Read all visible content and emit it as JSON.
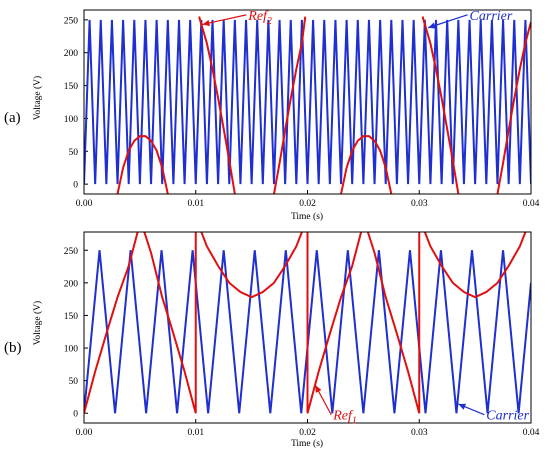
{
  "chart_data": [
    {
      "type": "line",
      "panel_label": "(a)",
      "xlabel": "Time (s)",
      "ylabel": "Voltage (V)",
      "xlim": [
        0,
        0.04
      ],
      "ylim": [
        -15,
        265
      ],
      "x_ticks": [
        "0.00",
        "0.01",
        "0.02",
        "0.03",
        "0.04"
      ],
      "y_ticks": [
        "0",
        "50",
        "100",
        "150",
        "200",
        "250"
      ],
      "grid": false,
      "colors": {
        "carrier": "#1f2fd0",
        "reference": "#e01010"
      },
      "series": [
        {
          "name": "Carrier",
          "kind": "triangular",
          "min": 0,
          "max": 250,
          "frequency_hz": 1000,
          "points": [
            [
              0,
              0
            ],
            [
              0.0005,
              250
            ],
            [
              0.001,
              0
            ],
            [
              0.0015,
              250
            ],
            [
              0.002,
              0
            ],
            [
              0.0025,
              250
            ],
            [
              0.003,
              0
            ],
            [
              0.0035,
              250
            ],
            [
              0.004,
              0
            ],
            [
              0.0045,
              250
            ],
            [
              0.005,
              0
            ],
            [
              0.0055,
              250
            ],
            [
              0.006,
              0
            ],
            [
              0.0065,
              250
            ],
            [
              0.007,
              0
            ],
            [
              0.0075,
              250
            ],
            [
              0.008,
              0
            ],
            [
              0.0085,
              250
            ],
            [
              0.009,
              0
            ],
            [
              0.0095,
              250
            ],
            [
              0.01,
              0
            ],
            [
              0.0105,
              250
            ],
            [
              0.011,
              0
            ],
            [
              0.0115,
              250
            ],
            [
              0.012,
              0
            ],
            [
              0.0125,
              250
            ],
            [
              0.013,
              0
            ],
            [
              0.0135,
              250
            ],
            [
              0.014,
              0
            ],
            [
              0.0145,
              250
            ],
            [
              0.015,
              0
            ],
            [
              0.0155,
              250
            ],
            [
              0.016,
              0
            ],
            [
              0.0165,
              250
            ],
            [
              0.017,
              0
            ],
            [
              0.0175,
              250
            ],
            [
              0.018,
              0
            ],
            [
              0.0185,
              250
            ],
            [
              0.019,
              0
            ],
            [
              0.0195,
              250
            ],
            [
              0.02,
              0
            ],
            [
              0.0205,
              250
            ],
            [
              0.021,
              0
            ],
            [
              0.0215,
              250
            ],
            [
              0.022,
              0
            ],
            [
              0.0225,
              250
            ],
            [
              0.023,
              0
            ],
            [
              0.0235,
              250
            ],
            [
              0.024,
              0
            ],
            [
              0.0245,
              250
            ],
            [
              0.025,
              0
            ],
            [
              0.0255,
              250
            ],
            [
              0.026,
              0
            ],
            [
              0.0265,
              250
            ],
            [
              0.027,
              0
            ],
            [
              0.0275,
              250
            ],
            [
              0.028,
              0
            ],
            [
              0.0285,
              250
            ],
            [
              0.029,
              0
            ],
            [
              0.0295,
              250
            ],
            [
              0.03,
              0
            ],
            [
              0.0305,
              250
            ],
            [
              0.031,
              0
            ],
            [
              0.0315,
              250
            ],
            [
              0.032,
              0
            ],
            [
              0.0325,
              250
            ],
            [
              0.033,
              0
            ],
            [
              0.0335,
              250
            ],
            [
              0.034,
              0
            ],
            [
              0.0345,
              250
            ],
            [
              0.035,
              0
            ],
            [
              0.0355,
              250
            ],
            [
              0.036,
              0
            ],
            [
              0.0365,
              250
            ],
            [
              0.037,
              0
            ],
            [
              0.0375,
              250
            ],
            [
              0.038,
              0
            ],
            [
              0.0385,
              250
            ],
            [
              0.039,
              0
            ],
            [
              0.0395,
              250
            ],
            [
              0.04,
              0
            ]
          ]
        },
        {
          "name": "Ref2",
          "kind": "piecewise",
          "segments": [
            [
              [
                0.003,
                -15
              ],
              [
                0.0035,
                25
              ],
              [
                0.004,
                51
              ],
              [
                0.0045,
                66
              ],
              [
                0.005,
                73
              ],
              [
                0.0055,
                73
              ],
              [
                0.006,
                66
              ],
              [
                0.0065,
                51
              ],
              [
                0.007,
                25
              ],
              [
                0.0075,
                -15
              ]
            ],
            [
              [
                0.0103,
                255
              ],
              [
                0.011,
                214
              ],
              [
                0.0115,
                175
              ],
              [
                0.012,
                131
              ],
              [
                0.0125,
                84
              ],
              [
                0.013,
                36
              ],
              [
                0.0135,
                -15
              ]
            ],
            [
              [
                0.017,
                -15
              ],
              [
                0.0175,
                32
              ],
              [
                0.018,
                82
              ],
              [
                0.0185,
                130
              ],
              [
                0.019,
                175
              ],
              [
                0.0195,
                215
              ],
              [
                0.0198,
                255
              ]
            ],
            [
              [
                0.023,
                -15
              ],
              [
                0.0235,
                25
              ],
              [
                0.024,
                51
              ],
              [
                0.0245,
                66
              ],
              [
                0.025,
                73
              ],
              [
                0.0255,
                73
              ],
              [
                0.026,
                66
              ],
              [
                0.0265,
                51
              ],
              [
                0.027,
                25
              ],
              [
                0.0275,
                -15
              ]
            ],
            [
              [
                0.0303,
                255
              ],
              [
                0.031,
                214
              ],
              [
                0.0315,
                175
              ],
              [
                0.032,
                131
              ],
              [
                0.0325,
                84
              ],
              [
                0.033,
                36
              ],
              [
                0.0335,
                -15
              ]
            ],
            [
              [
                0.037,
                -15
              ],
              [
                0.0375,
                32
              ],
              [
                0.038,
                82
              ],
              [
                0.0385,
                130
              ],
              [
                0.039,
                175
              ],
              [
                0.0395,
                215
              ],
              [
                0.04,
                247
              ]
            ]
          ]
        }
      ],
      "annotations": [
        {
          "text": "Ref",
          "sub": "2",
          "color": "#e01010",
          "arrow_to": [
            0.0106,
            243
          ],
          "label_at": [
            0.0147,
            250
          ]
        },
        {
          "text": "Carrier",
          "sub": "",
          "color": "#1f2fd0",
          "arrow_to": [
            0.0308,
            238
          ],
          "label_at": [
            0.0345,
            250
          ]
        }
      ]
    },
    {
      "type": "line",
      "panel_label": "(b)",
      "xlabel": "Time (s)",
      "ylabel": "Voltage (V)",
      "xlim": [
        0,
        0.04
      ],
      "ylim": [
        -15,
        278
      ],
      "x_ticks": [
        "0.00",
        "0.01",
        "0.02",
        "0.03",
        "0.04"
      ],
      "y_ticks": [
        "0",
        "50",
        "100",
        "150",
        "200",
        "250"
      ],
      "grid": false,
      "colors": {
        "carrier": "#1f2fd0",
        "reference": "#e01010"
      },
      "series": [
        {
          "name": "Carrier",
          "kind": "triangular",
          "min": 0,
          "max": 250,
          "frequency_hz": 900,
          "points": [
            [
              0,
              0
            ],
            [
              0.00139,
              250
            ],
            [
              0.00278,
              0
            ],
            [
              0.00417,
              250
            ],
            [
              0.00556,
              0
            ],
            [
              0.00694,
              250
            ],
            [
              0.00833,
              0
            ],
            [
              0.00972,
              250
            ],
            [
              0.01111,
              0
            ],
            [
              0.0125,
              250
            ],
            [
              0.01389,
              0
            ],
            [
              0.01528,
              250
            ],
            [
              0.01667,
              0
            ],
            [
              0.01806,
              250
            ],
            [
              0.01944,
              0
            ],
            [
              0.02083,
              250
            ],
            [
              0.02222,
              0
            ],
            [
              0.02361,
              250
            ],
            [
              0.025,
              0
            ],
            [
              0.02639,
              250
            ],
            [
              0.02778,
              0
            ],
            [
              0.02917,
              250
            ],
            [
              0.03056,
              0
            ],
            [
              0.03194,
              250
            ],
            [
              0.03333,
              0
            ],
            [
              0.03472,
              250
            ],
            [
              0.03611,
              0
            ],
            [
              0.0375,
              250
            ],
            [
              0.03889,
              0
            ],
            [
              0.04,
              200
            ]
          ]
        },
        {
          "name": "Ref1",
          "kind": "piecewise",
          "segments": [
            [
              [
                0,
                0
              ],
              [
                0.001,
                64
              ],
              [
                0.002,
                122
              ],
              [
                0.003,
                178
              ],
              [
                0.004,
                226
              ],
              [
                0.0048,
                278
              ]
            ],
            [
              [
                0.0054,
                278
              ],
              [
                0.006,
                246
              ],
              [
                0.007,
                178
              ],
              [
                0.008,
                122
              ],
              [
                0.009,
                64
              ],
              [
                0.01,
                0
              ],
              [
                0.01,
                278
              ]
            ],
            [
              [
                0.0105,
                278
              ],
              [
                0.011,
                256
              ],
              [
                0.012,
                226
              ],
              [
                0.013,
                200
              ],
              [
                0.014,
                186
              ],
              [
                0.015,
                178
              ],
              [
                0.016,
                186
              ],
              [
                0.017,
                200
              ],
              [
                0.018,
                226
              ],
              [
                0.019,
                256
              ],
              [
                0.0195,
                278
              ]
            ],
            [
              [
                0.02,
                278
              ],
              [
                0.02,
                0
              ],
              [
                0.021,
                64
              ],
              [
                0.022,
                122
              ],
              [
                0.023,
                178
              ],
              [
                0.024,
                226
              ],
              [
                0.0248,
                278
              ]
            ],
            [
              [
                0.0254,
                278
              ],
              [
                0.026,
                246
              ],
              [
                0.027,
                178
              ],
              [
                0.028,
                122
              ],
              [
                0.029,
                64
              ],
              [
                0.03,
                0
              ],
              [
                0.03,
                278
              ]
            ],
            [
              [
                0.0305,
                278
              ],
              [
                0.031,
                256
              ],
              [
                0.032,
                226
              ],
              [
                0.033,
                200
              ],
              [
                0.034,
                186
              ],
              [
                0.035,
                178
              ],
              [
                0.036,
                186
              ],
              [
                0.037,
                200
              ],
              [
                0.038,
                226
              ],
              [
                0.039,
                256
              ],
              [
                0.0395,
                278
              ]
            ]
          ]
        }
      ],
      "annotations": [
        {
          "text": "Ref",
          "sub": "1",
          "color": "#e01010",
          "arrow_to": [
            0.0207,
            43
          ],
          "label_at": [
            0.0223,
            -10
          ]
        },
        {
          "text": "Carrier",
          "sub": "",
          "color": "#1f2fd0",
          "arrow_to": [
            0.0335,
            14
          ],
          "label_at": [
            0.036,
            -10
          ]
        }
      ]
    }
  ]
}
